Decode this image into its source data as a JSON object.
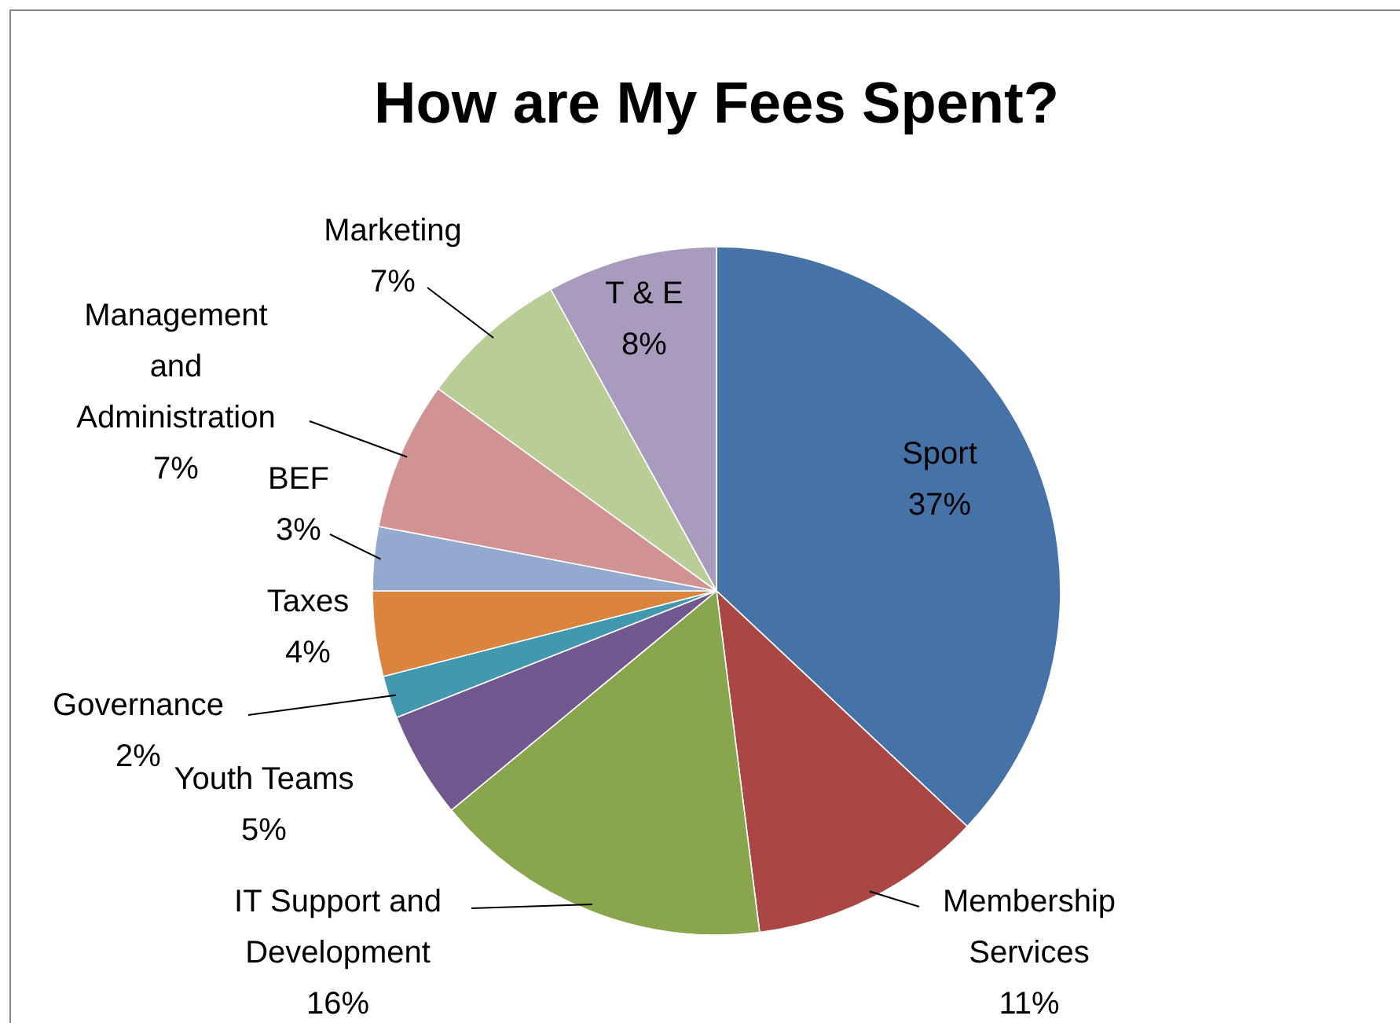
{
  "chart_data": {
    "type": "pie",
    "title": "How are My Fees Spent?",
    "categories": [
      "Sport",
      "Membership Services",
      "IT Support and Development",
      "Youth Teams",
      "Governance",
      "Taxes",
      "BEF",
      "Management and Administration",
      "Marketing",
      "T & E"
    ],
    "values": [
      37,
      11,
      16,
      5,
      2,
      4,
      3,
      7,
      7,
      8
    ],
    "colors": [
      "#4572a7",
      "#aa4643",
      "#89a54e",
      "#71588f",
      "#4198af",
      "#db843d",
      "#93a9cf",
      "#d19392",
      "#b9cd96",
      "#a99bbd"
    ],
    "value_labels": [
      "37%",
      "11%",
      "16%",
      "5%",
      "2%",
      "4%",
      "3%",
      "7%",
      "7%",
      "8%"
    ]
  }
}
